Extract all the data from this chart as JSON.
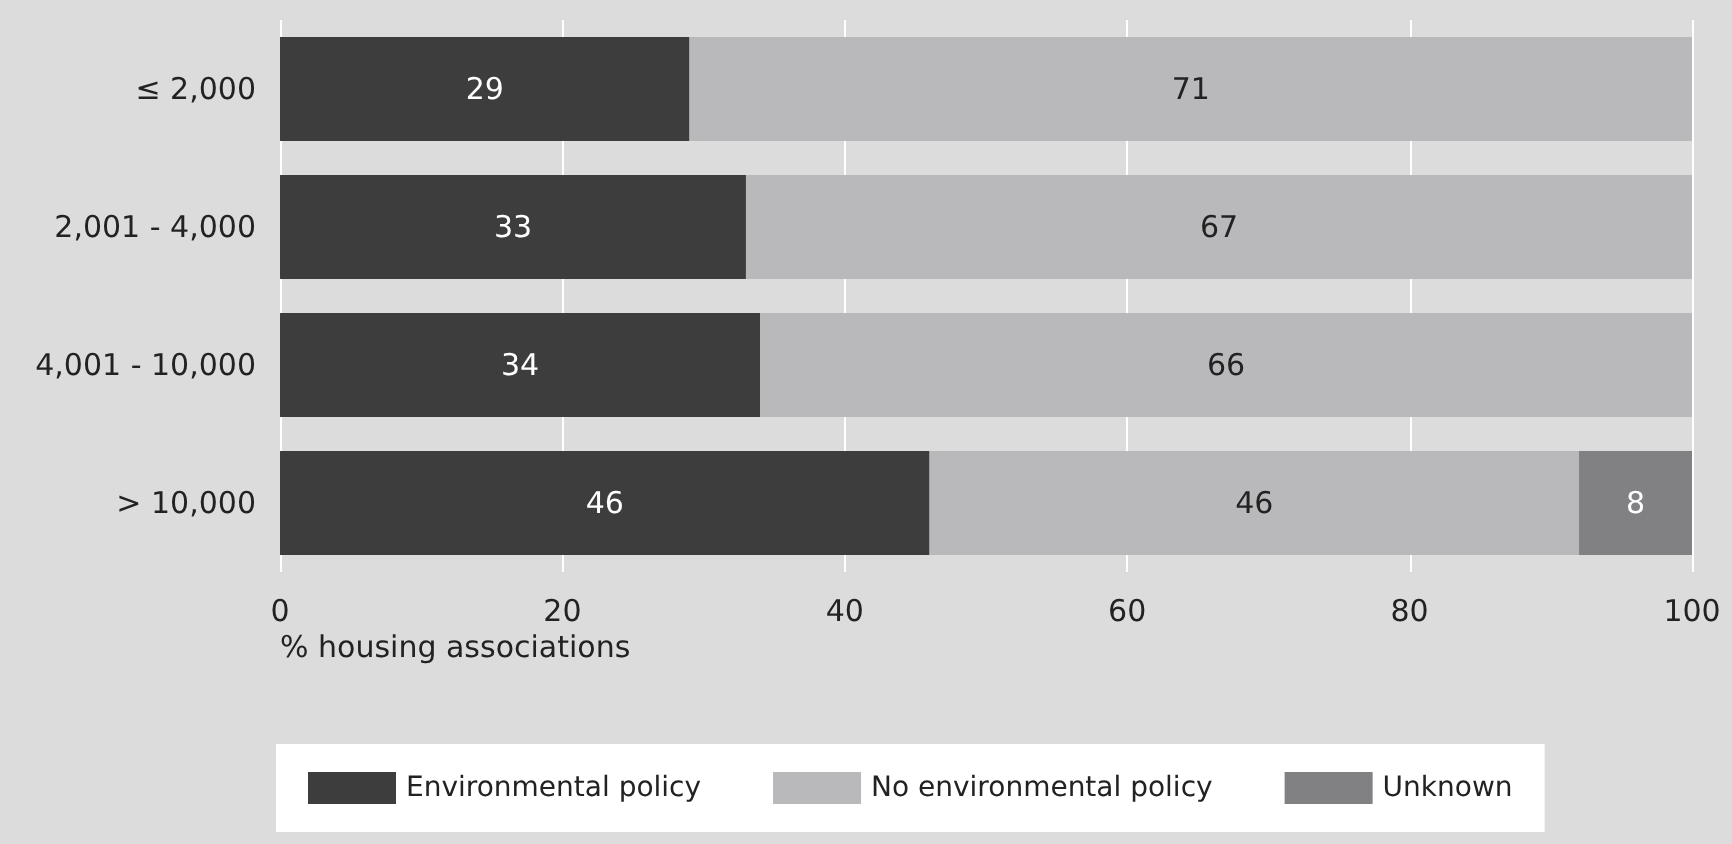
{
  "chart_data": {
    "type": "bar",
    "orientation": "horizontal",
    "stacked": true,
    "xlabel": "% housing associations",
    "categories": [
      "≤ 2,000",
      "2,001 - 4,000",
      "4,001 - 10,000",
      "> 10,000"
    ],
    "series": [
      {
        "name": "Environmental policy",
        "color": "#3d3d3d",
        "values": [
          29,
          33,
          34,
          46
        ]
      },
      {
        "name": "No environmental policy",
        "color": "#b9b9bb",
        "values": [
          71,
          67,
          66,
          46
        ]
      },
      {
        "name": "Unknown",
        "color": "#818184",
        "values": [
          null,
          null,
          null,
          8
        ]
      }
    ],
    "xlim": [
      0,
      100
    ],
    "xticks": [
      0,
      20,
      40,
      60,
      80,
      100
    ],
    "grid": "x",
    "legend": "bottom",
    "data_labels": true
  }
}
